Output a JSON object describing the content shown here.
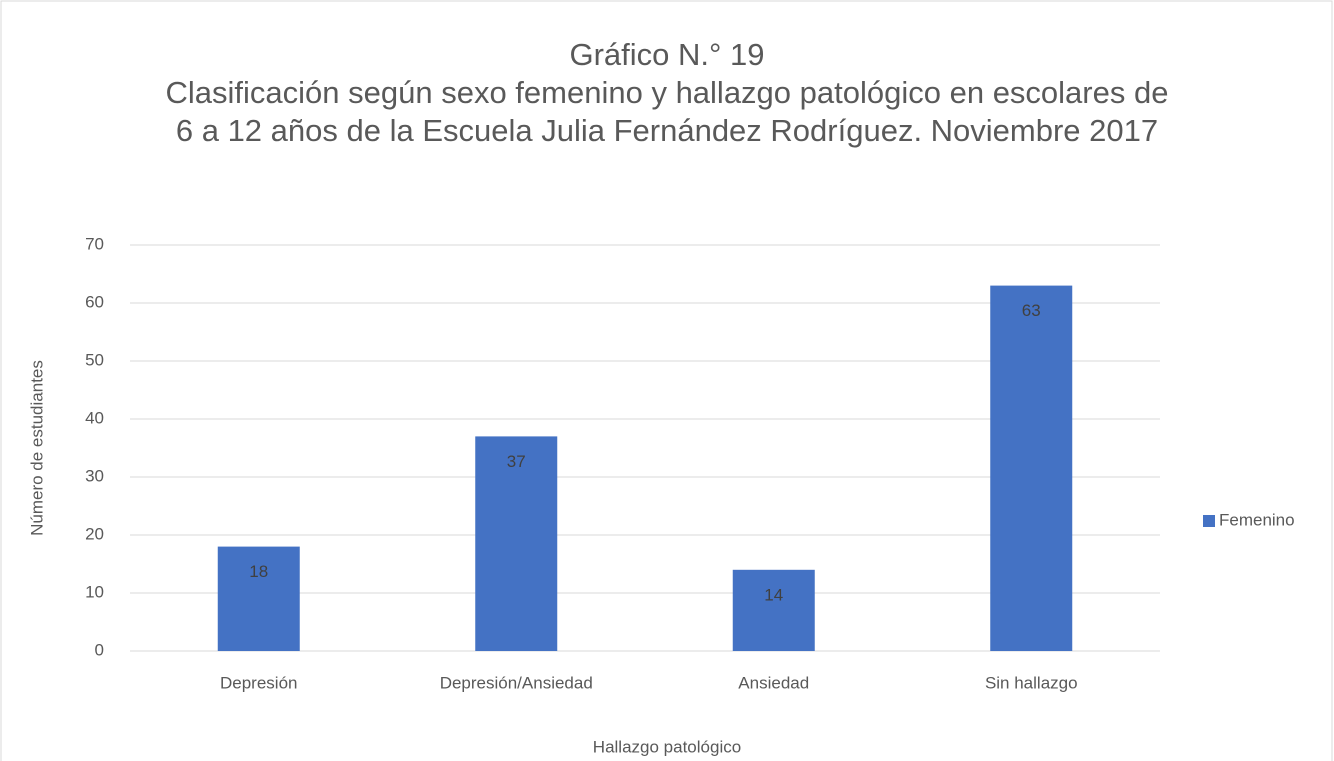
{
  "chart_data": {
    "type": "bar",
    "title": "Gráfico N.° 19",
    "subtitle": "Clasificación según sexo femenino y hallazgo patológico en escolares de 6 a 12 años de la Escuela Julia Fernández Rodríguez. Noviembre 2017",
    "x_label": "Hallazgo patológico",
    "y_label": "Número de estudiantes",
    "categories": [
      "Depresión",
      "Depresión/Ansiedad",
      "Ansiedad",
      "Sin hallazgo"
    ],
    "series": [
      {
        "name": "Femenino",
        "color": "#4472c4",
        "values": [
          18,
          37,
          14,
          63
        ]
      }
    ],
    "ylim": [
      0,
      70
    ],
    "yticks": [
      0,
      10,
      20,
      30,
      40,
      50,
      60,
      70
    ],
    "grid": true,
    "legend": "right"
  }
}
